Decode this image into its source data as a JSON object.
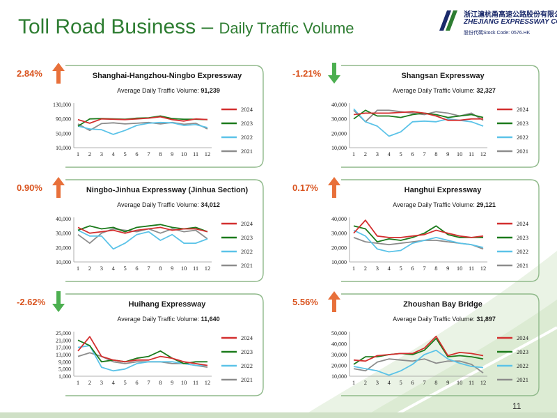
{
  "header": {
    "title_main": "Toll Road Business – ",
    "title_sub": "Daily Traffic Volume",
    "logo_cn": "浙江滬杭甬高速公路股份有限公司",
    "logo_en": "ZHEJIANG EXPRESSWAY CO., LTD.",
    "logo_code": "股份代碼Stock Code: 0576.HK"
  },
  "page_number": "11",
  "colors": {
    "title": "#2e7d32",
    "panel_border": "#8fb98a",
    "arrow_up": "#e8703a",
    "arrow_down": "#4caf50",
    "change_text": "#d9531e",
    "s2024": "#d32f2f",
    "s2023": "#1b7a1b",
    "s2022": "#5bc3e8",
    "s2021": "#8c8c8c"
  },
  "chart_data": [
    {
      "type": "line",
      "title": "Shanghai-Hangzhou-Ningbo Expressway",
      "subtitle_label": "Average Daily Traffic Volume: ",
      "subtitle_value": "91,239",
      "change": "2.84%",
      "direction": "up",
      "x": [
        1,
        2,
        3,
        4,
        5,
        6,
        7,
        8,
        9,
        10,
        11,
        12
      ],
      "ylim": [
        10000,
        130000
      ],
      "yticks": [
        10000,
        50000,
        90000,
        130000
      ],
      "ytick_labels": [
        "10,000",
        "50,000",
        "90,000",
        "130,000"
      ],
      "series": [
        {
          "name": "2024",
          "values": [
            88000,
            78000,
            90000,
            89000,
            88000,
            90000,
            92000,
            96000,
            88000,
            84000,
            90000,
            88000
          ]
        },
        {
          "name": "2023",
          "values": [
            70000,
            90000,
            91000,
            90000,
            89000,
            92000,
            93000,
            98000,
            91000,
            89000,
            89000,
            88000
          ]
        },
        {
          "name": "2022",
          "values": [
            70000,
            62000,
            60000,
            47000,
            58000,
            72000,
            78000,
            80000,
            79000,
            72000,
            74000,
            66000
          ]
        },
        {
          "name": "2021",
          "values": [
            76000,
            58000,
            77000,
            79000,
            76000,
            78000,
            80000,
            76000,
            80000,
            75000,
            78000,
            62000
          ]
        }
      ]
    },
    {
      "type": "line",
      "title": "Shangsan Expressway",
      "subtitle_label": "Average Daily Traffic Volume: ",
      "subtitle_value": "32,327",
      "change": "-1.21%",
      "direction": "down",
      "x": [
        1,
        2,
        3,
        4,
        5,
        6,
        7,
        8,
        9,
        10,
        11,
        12
      ],
      "ylim": [
        10000,
        40000
      ],
      "yticks": [
        10000,
        20000,
        30000,
        40000
      ],
      "ytick_labels": [
        "10,000",
        "20,000",
        "30,000",
        "40,000"
      ],
      "series": [
        {
          "name": "2024",
          "values": [
            33000,
            34000,
            34000,
            34000,
            34500,
            35000,
            34000,
            32000,
            29000,
            29000,
            30000,
            30000
          ]
        },
        {
          "name": "2023",
          "values": [
            30000,
            36000,
            32000,
            32000,
            31000,
            33000,
            34000,
            33000,
            31000,
            32000,
            33000,
            31000
          ]
        },
        {
          "name": "2022",
          "values": [
            37000,
            28000,
            25000,
            18000,
            21000,
            28000,
            28500,
            28000,
            30000,
            29000,
            28000,
            25000
          ]
        },
        {
          "name": "2021",
          "values": [
            36000,
            28000,
            36000,
            36000,
            35000,
            34000,
            33000,
            35000,
            34000,
            32000,
            34000,
            29000
          ]
        }
      ]
    },
    {
      "type": "line",
      "title": "Ningbo-Jinhua Expressway (Jinhua Section)",
      "subtitle_label": "Average Daily Traffic Volume: ",
      "subtitle_value": "34,012",
      "change": "0.90%",
      "direction": "up",
      "x": [
        1,
        2,
        3,
        4,
        5,
        6,
        7,
        8,
        9,
        10,
        11,
        12
      ],
      "ylim": [
        10000,
        40000
      ],
      "yticks": [
        10000,
        20000,
        30000,
        40000
      ],
      "ytick_labels": [
        "10,000",
        "20,000",
        "30,000",
        "40,000"
      ],
      "series": [
        {
          "name": "2024",
          "values": [
            34000,
            30000,
            31000,
            32000,
            30000,
            32000,
            33000,
            34000,
            32000,
            33000,
            33000,
            31000
          ]
        },
        {
          "name": "2023",
          "values": [
            32000,
            35000,
            33000,
            34000,
            31000,
            34000,
            35000,
            36000,
            34000,
            33000,
            34000,
            31000
          ]
        },
        {
          "name": "2022",
          "values": [
            32000,
            28000,
            28000,
            19000,
            23000,
            29000,
            31000,
            25000,
            29000,
            23000,
            23000,
            26000
          ]
        },
        {
          "name": "2021",
          "values": [
            29000,
            23000,
            30000,
            33000,
            32000,
            31000,
            33000,
            30000,
            33000,
            31000,
            32000,
            26000
          ]
        }
      ]
    },
    {
      "type": "line",
      "title": "Hanghui Expressway",
      "subtitle_label": "Average Daily Traffic Volume: ",
      "subtitle_value": "29,121",
      "change": "0.17%",
      "direction": "up",
      "x": [
        1,
        2,
        3,
        4,
        5,
        6,
        7,
        8,
        9,
        10,
        11,
        12
      ],
      "ylim": [
        10000,
        40000
      ],
      "yticks": [
        10000,
        20000,
        30000,
        40000
      ],
      "ytick_labels": [
        "10,000",
        "20,000",
        "30,000",
        "40,000"
      ],
      "series": [
        {
          "name": "2024",
          "values": [
            30000,
            39000,
            28000,
            27000,
            27000,
            28000,
            29000,
            32000,
            30000,
            28000,
            27000,
            28000
          ]
        },
        {
          "name": "2023",
          "values": [
            35000,
            33000,
            24000,
            26000,
            25000,
            27000,
            30000,
            35000,
            29000,
            27000,
            27000,
            27000
          ]
        },
        {
          "name": "2022",
          "values": [
            32000,
            28000,
            19000,
            17000,
            18000,
            23000,
            25000,
            27000,
            25000,
            23000,
            22000,
            20000
          ]
        },
        {
          "name": "2021",
          "values": [
            27000,
            24000,
            23000,
            22000,
            23000,
            24000,
            25000,
            25000,
            24000,
            23000,
            22000,
            19000
          ]
        }
      ]
    },
    {
      "type": "line",
      "title": "Huihang Expressway",
      "subtitle_label": "Average Daily Traffic Volume: ",
      "subtitle_value": "11,640",
      "change": "-2.62%",
      "direction": "down",
      "x": [
        1,
        2,
        3,
        4,
        5,
        6,
        7,
        8,
        9,
        10,
        11,
        12
      ],
      "ylim": [
        1000,
        25000
      ],
      "yticks": [
        1000,
        5000,
        9000,
        13000,
        17000,
        21000,
        25000
      ],
      "ytick_labels": [
        "1,000",
        "5,000",
        "9,000",
        "13,000",
        "17,000",
        "21,000",
        "25,000"
      ],
      "series": [
        {
          "name": "2024",
          "values": [
            15000,
            23000,
            12000,
            10000,
            9000,
            10000,
            10000,
            12000,
            11000,
            9000,
            8000,
            7000
          ]
        },
        {
          "name": "2023",
          "values": [
            21000,
            18000,
            9000,
            10000,
            9000,
            11000,
            12000,
            15000,
            11000,
            8000,
            9000,
            9000
          ]
        },
        {
          "name": "2022",
          "values": [
            17000,
            18000,
            6000,
            4000,
            5000,
            8000,
            9000,
            9000,
            9000,
            8000,
            7000,
            7000
          ]
        },
        {
          "name": "2021",
          "values": [
            12000,
            14000,
            12000,
            9000,
            8000,
            9000,
            9000,
            9000,
            8000,
            8000,
            7000,
            6000
          ]
        }
      ]
    },
    {
      "type": "line",
      "title": "Zhoushan Bay Bridge",
      "subtitle_label": "Average Daily Traffic Volume: ",
      "subtitle_value": "31,897",
      "change": "5.56%",
      "direction": "up",
      "x": [
        1,
        2,
        3,
        4,
        5,
        6,
        7,
        8,
        9,
        10,
        11,
        12
      ],
      "ylim": [
        10000,
        50000
      ],
      "yticks": [
        10000,
        20000,
        30000,
        40000,
        50000
      ],
      "ytick_labels": [
        "10,000",
        "20,000",
        "30,000",
        "40,000",
        "50,000"
      ],
      "series": [
        {
          "name": "2024",
          "values": [
            25000,
            24000,
            29000,
            30000,
            31000,
            31000,
            36000,
            47000,
            29000,
            32000,
            31000,
            29000
          ]
        },
        {
          "name": "2023",
          "values": [
            21000,
            28000,
            28000,
            30000,
            31000,
            30000,
            34000,
            45000,
            28000,
            29000,
            28000,
            26000
          ]
        },
        {
          "name": "2022",
          "values": [
            19000,
            17000,
            15000,
            11000,
            15000,
            21000,
            30000,
            34000,
            26000,
            22000,
            19000,
            18000
          ]
        },
        {
          "name": "2021",
          "values": [
            17000,
            15000,
            23000,
            26000,
            25000,
            24000,
            26000,
            22000,
            24000,
            24000,
            21000,
            13000
          ]
        }
      ]
    }
  ]
}
